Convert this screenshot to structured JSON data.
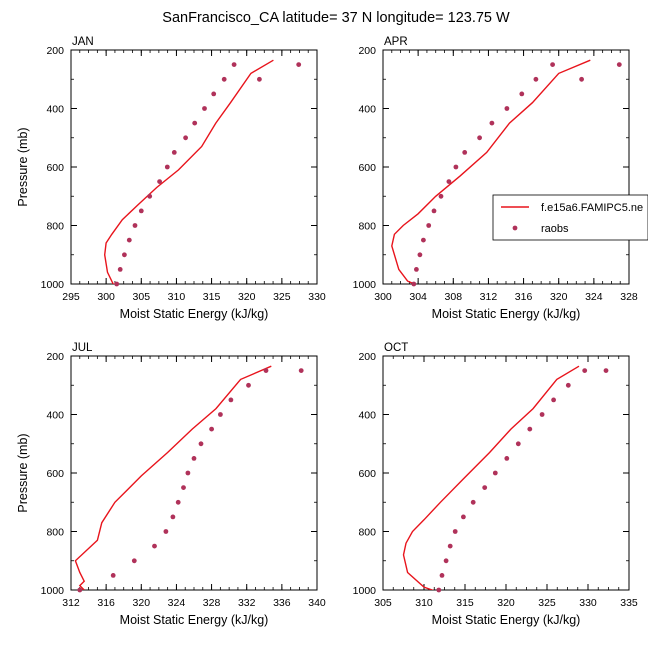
{
  "chart_data": {
    "type": "line",
    "title": "SanFrancisco_CA  latitude= 37 N longitude= 123.75 W",
    "legend": {
      "placement": "right",
      "entries": [
        {
          "label": "f.e15a6.FAMIPC5.ne",
          "kind": "line",
          "color": "#e8141c"
        },
        {
          "label": "raobs",
          "kind": "marker",
          "color": "#b0325a"
        }
      ]
    },
    "panels": [
      {
        "label": "JAN",
        "xlabel": "Moist Static Energy (kJ/kg)",
        "ylabel": "Pressure (mb)",
        "xlim": [
          295,
          330
        ],
        "ylim": [
          1000,
          200
        ],
        "xticks": [
          "295",
          "300",
          "305",
          "310",
          "315",
          "320",
          "325",
          "330"
        ],
        "yticks": [
          "200",
          "400",
          "600",
          "800",
          "1000"
        ],
        "model": {
          "x": [
            302.0,
            301.0,
            300.2,
            299.8,
            300.0,
            300.8,
            302.3,
            304.5,
            307.2,
            310.3,
            313.6,
            315.6,
            317.7,
            320.6,
            323.8
          ],
          "y": [
            1010,
            1000,
            960,
            900,
            860,
            830,
            780,
            730,
            670,
            610,
            530,
            450,
            380,
            280,
            235
          ]
        },
        "obs": {
          "x": [
            301.5,
            302.0,
            302.6,
            303.3,
            304.1,
            305.0,
            306.2,
            307.6,
            308.7,
            309.7,
            311.3,
            312.6,
            314.0,
            315.3,
            316.8,
            318.2,
            321.8,
            327.4
          ],
          "y": [
            1000,
            950,
            900,
            850,
            800,
            750,
            700,
            650,
            600,
            550,
            500,
            450,
            400,
            350,
            300,
            250,
            300,
            250
          ]
        }
      },
      {
        "label": "APR",
        "xlabel": "Moist Static Energy (kJ/kg)",
        "ylabel": "",
        "xlim": [
          300,
          328
        ],
        "ylim": [
          1000,
          200
        ],
        "xticks": [
          "300",
          "304",
          "308",
          "312",
          "316",
          "320",
          "324",
          "328"
        ],
        "yticks": [],
        "model": {
          "x": [
            304.0,
            302.8,
            301.8,
            301.0,
            301.3,
            302.3,
            304.0,
            306.0,
            308.8,
            311.8,
            314.4,
            317.0,
            320.0,
            323.6
          ],
          "y": [
            1005,
            990,
            950,
            870,
            830,
            800,
            760,
            700,
            630,
            550,
            450,
            380,
            280,
            235
          ]
        },
        "obs": {
          "x": [
            303.5,
            303.8,
            304.2,
            304.6,
            305.2,
            305.8,
            306.6,
            307.5,
            308.3,
            309.3,
            311.0,
            312.4,
            314.1,
            315.8,
            317.4,
            319.3,
            322.6,
            326.9
          ],
          "y": [
            1000,
            950,
            900,
            850,
            800,
            750,
            700,
            650,
            600,
            550,
            500,
            450,
            400,
            350,
            300,
            250,
            300,
            250
          ]
        }
      },
      {
        "label": "JUL",
        "xlabel": "Moist Static Energy (kJ/kg)",
        "ylabel": "Pressure (mb)",
        "xlim": [
          312,
          340
        ],
        "ylim": [
          1000,
          200
        ],
        "xticks": [
          "312",
          "316",
          "320",
          "324",
          "328",
          "332",
          "336",
          "340"
        ],
        "yticks": [
          "200",
          "400",
          "600",
          "800",
          "1000"
        ],
        "model": {
          "x": [
            313.5,
            313.0,
            313.5,
            313.0,
            312.5,
            315.0,
            315.5,
            317.0,
            320.0,
            323.0,
            325.8,
            328.5,
            331.3,
            334.8
          ],
          "y": [
            1000,
            985,
            970,
            940,
            900,
            830,
            770,
            700,
            610,
            530,
            450,
            380,
            280,
            235
          ]
        },
        "obs": {
          "x": [
            313.0,
            316.8,
            319.2,
            321.5,
            322.8,
            323.6,
            324.2,
            324.8,
            325.3,
            326.0,
            326.8,
            328.0,
            329.0,
            330.2,
            332.2,
            334.2,
            338.2
          ],
          "y": [
            1000,
            950,
            900,
            850,
            800,
            750,
            700,
            650,
            600,
            550,
            500,
            450,
            400,
            350,
            300,
            250,
            250
          ]
        }
      },
      {
        "label": "OCT",
        "xlabel": "Moist Static Energy (kJ/kg)",
        "ylabel": "",
        "xlim": [
          305,
          335
        ],
        "ylim": [
          1000,
          200
        ],
        "xticks": [
          "305",
          "310",
          "315",
          "320",
          "325",
          "330",
          "335"
        ],
        "yticks": [],
        "model": {
          "x": [
            311.5,
            310.0,
            308.0,
            307.5,
            307.8,
            308.6,
            310.0,
            312.0,
            314.8,
            318.0,
            320.6,
            323.3,
            326.2,
            328.9
          ],
          "y": [
            1005,
            990,
            940,
            880,
            840,
            800,
            760,
            700,
            620,
            530,
            450,
            380,
            280,
            235
          ]
        },
        "obs": {
          "x": [
            311.8,
            312.2,
            312.7,
            313.2,
            313.8,
            314.8,
            316.0,
            317.4,
            318.7,
            320.1,
            321.5,
            322.9,
            324.4,
            325.8,
            327.6,
            329.6,
            332.2
          ],
          "y": [
            1000,
            950,
            900,
            850,
            800,
            750,
            700,
            650,
            600,
            550,
            500,
            450,
            400,
            350,
            300,
            250,
            250
          ]
        }
      }
    ]
  }
}
